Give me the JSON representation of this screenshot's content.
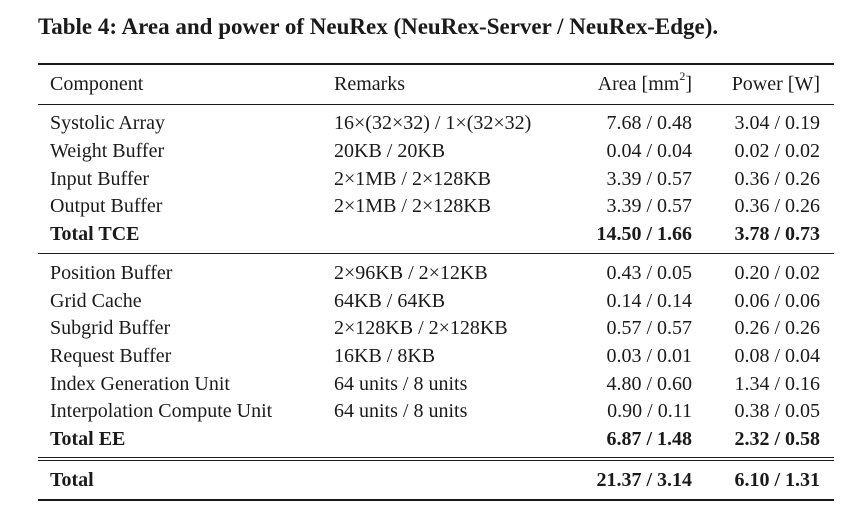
{
  "caption": "Table 4: Area and power of NeuRex (NeuRex-Server / NeuRex-Edge).",
  "header": {
    "component": "Component",
    "remarks": "Remarks",
    "area_prefix": "Area [mm",
    "area_sup": "2",
    "area_suffix": "]",
    "power": "Power [W]"
  },
  "tce_rows": [
    {
      "component": "Systolic Array",
      "remarks": "16×(32×32) / 1×(32×32)",
      "area": "7.68 / 0.48",
      "power": "3.04 / 0.19"
    },
    {
      "component": "Weight Buffer",
      "remarks": "20KB / 20KB",
      "area": "0.04 / 0.04",
      "power": "0.02 / 0.02"
    },
    {
      "component": "Input Buffer",
      "remarks": "2×1MB / 2×128KB",
      "area": "3.39 / 0.57",
      "power": "0.36 / 0.26"
    },
    {
      "component": "Output Buffer",
      "remarks": "2×1MB / 2×128KB",
      "area": "3.39 / 0.57",
      "power": "0.36 / 0.26"
    }
  ],
  "tce_total": {
    "component": "Total TCE",
    "remarks": "",
    "area": "14.50 / 1.66",
    "power": "3.78 / 0.73"
  },
  "ee_rows": [
    {
      "component": "Position Buffer",
      "remarks": "2×96KB / 2×12KB",
      "area": "0.43 / 0.05",
      "power": "0.20 / 0.02"
    },
    {
      "component": "Grid Cache",
      "remarks": "64KB / 64KB",
      "area": "0.14 / 0.14",
      "power": "0.06 / 0.06"
    },
    {
      "component": "Subgrid Buffer",
      "remarks": "2×128KB / 2×128KB",
      "area": "0.57 / 0.57",
      "power": "0.26 / 0.26"
    },
    {
      "component": "Request Buffer",
      "remarks": "16KB / 8KB",
      "area": "0.03 / 0.01",
      "power": "0.08 / 0.04"
    },
    {
      "component": "Index Generation Unit",
      "remarks": "64 units / 8 units",
      "area": "4.80 / 0.60",
      "power": "1.34 / 0.16"
    },
    {
      "component": "Interpolation Compute Unit",
      "remarks": "64 units / 8 units",
      "area": "0.90 / 0.11",
      "power": "0.38 / 0.05"
    }
  ],
  "ee_total": {
    "component": "Total EE",
    "remarks": "",
    "area": "6.87 / 1.48",
    "power": "2.32 / 0.58"
  },
  "grand_total": {
    "component": "Total",
    "remarks": "",
    "area": "21.37 / 3.14",
    "power": "6.10 / 1.31"
  }
}
